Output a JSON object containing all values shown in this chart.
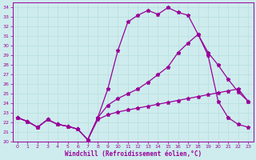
{
  "bg_color": "#ceeced",
  "line_color": "#990099",
  "grid_color": "#b8dfe0",
  "xlabel": "Windchill (Refroidissement éolien,°C)",
  "xlim": [
    -0.5,
    23.5
  ],
  "ylim": [
    20,
    34.5
  ],
  "xticks": [
    0,
    1,
    2,
    3,
    4,
    5,
    6,
    7,
    8,
    9,
    10,
    11,
    12,
    13,
    14,
    15,
    16,
    17,
    18,
    19,
    20,
    21,
    22,
    23
  ],
  "yticks": [
    20,
    21,
    22,
    23,
    24,
    25,
    26,
    27,
    28,
    29,
    30,
    31,
    32,
    33,
    34
  ],
  "series1_x": [
    0,
    1,
    2,
    3,
    4,
    5,
    6,
    7,
    8,
    9,
    10,
    11,
    12,
    13,
    14,
    15,
    16,
    17,
    18,
    19,
    20,
    21,
    22,
    23
  ],
  "series1_y": [
    22.5,
    22.1,
    21.5,
    22.3,
    21.8,
    21.6,
    21.3,
    20.2,
    22.5,
    25.5,
    29.5,
    32.5,
    33.2,
    33.7,
    33.3,
    34.0,
    33.5,
    33.2,
    31.2,
    29.0,
    24.2,
    22.5,
    21.8,
    21.5
  ],
  "series2_x": [
    0,
    1,
    2,
    3,
    4,
    5,
    6,
    7,
    8,
    9,
    10,
    11,
    12,
    13,
    14,
    15,
    16,
    17,
    18,
    19,
    20,
    21,
    22,
    23
  ],
  "series2_y": [
    22.5,
    22.1,
    21.5,
    22.3,
    21.8,
    21.6,
    21.3,
    20.2,
    22.3,
    22.8,
    23.1,
    23.3,
    23.5,
    23.7,
    23.9,
    24.1,
    24.3,
    24.5,
    24.7,
    24.9,
    25.1,
    25.3,
    25.5,
    24.2
  ],
  "series3_x": [
    0,
    1,
    2,
    3,
    4,
    5,
    6,
    7,
    8,
    9,
    10,
    11,
    12,
    13,
    14,
    15,
    16,
    17,
    18,
    19,
    20,
    21,
    22,
    23
  ],
  "series3_y": [
    22.5,
    22.1,
    21.5,
    22.3,
    21.8,
    21.6,
    21.3,
    20.2,
    22.5,
    23.8,
    24.5,
    25.0,
    25.5,
    26.2,
    27.0,
    27.8,
    29.3,
    30.3,
    31.2,
    29.3,
    28.0,
    26.5,
    25.2,
    24.2
  ]
}
